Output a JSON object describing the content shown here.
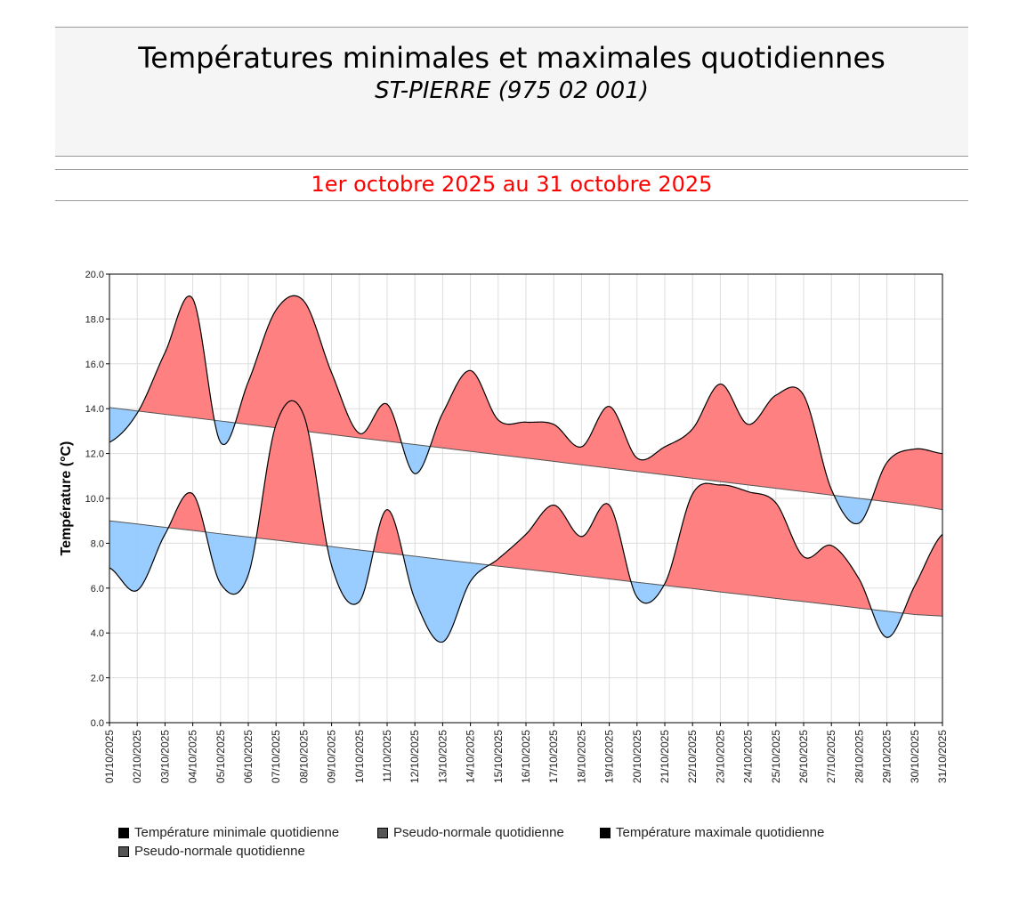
{
  "header": {
    "title": "Températures minimales et maximales quotidiennes",
    "station": "ST-PIERRE (975 02 001)",
    "period": "1er octobre 2025 au 31 octobre 2025"
  },
  "chart_data": {
    "type": "area",
    "ylabel": "Température (°C)",
    "ylim": [
      0,
      20
    ],
    "yticks": [
      "0.0",
      "2.0",
      "4.0",
      "6.0",
      "8.0",
      "10.0",
      "12.0",
      "14.0",
      "16.0",
      "18.0",
      "20.0"
    ],
    "grid": true,
    "categories": [
      "01/10/2025",
      "02/10/2025",
      "03/10/2025",
      "04/10/2025",
      "05/10/2025",
      "06/10/2025",
      "07/10/2025",
      "08/10/2025",
      "09/10/2025",
      "10/10/2025",
      "11/10/2025",
      "12/10/2025",
      "13/10/2025",
      "14/10/2025",
      "15/10/2025",
      "16/10/2025",
      "17/10/2025",
      "18/10/2025",
      "19/10/2025",
      "20/10/2025",
      "21/10/2025",
      "22/10/2025",
      "23/10/2025",
      "24/10/2025",
      "25/10/2025",
      "26/10/2025",
      "27/10/2025",
      "28/10/2025",
      "29/10/2025",
      "30/10/2025",
      "31/10/2025"
    ],
    "series": [
      {
        "name": "Température minimale quotidienne",
        "values": [
          6.9,
          5.9,
          8.4,
          10.2,
          6.2,
          6.6,
          13.3,
          13.7,
          7.0,
          5.4,
          9.5,
          5.5,
          3.6,
          6.3,
          7.3,
          8.4,
          9.7,
          8.3,
          9.7,
          5.6,
          6.2,
          10.2,
          10.6,
          10.3,
          9.8,
          7.4,
          7.9,
          6.4,
          3.8,
          6.1,
          8.4
        ]
      },
      {
        "name": "Pseudo-normale quotidienne",
        "values": [
          9.0,
          8.86,
          8.71,
          8.57,
          8.42,
          8.28,
          8.14,
          7.99,
          7.85,
          7.7,
          7.56,
          7.42,
          7.27,
          7.13,
          6.98,
          6.84,
          6.7,
          6.55,
          6.41,
          6.26,
          6.12,
          5.98,
          5.83,
          5.69,
          5.54,
          5.4,
          5.26,
          5.11,
          4.97,
          4.82,
          4.75
        ]
      },
      {
        "name": "Température maximale quotidienne",
        "values": [
          12.5,
          13.8,
          16.5,
          18.9,
          12.5,
          15.2,
          18.4,
          18.8,
          15.6,
          12.9,
          14.2,
          11.1,
          13.8,
          15.7,
          13.5,
          13.4,
          13.3,
          12.3,
          14.1,
          11.8,
          12.3,
          13.1,
          15.1,
          13.3,
          14.6,
          14.6,
          10.4,
          8.9,
          11.6,
          12.2,
          12.0
        ]
      },
      {
        "name": "Pseudo-normale quotidienne",
        "values": [
          14.05,
          13.9,
          13.75,
          13.6,
          13.45,
          13.3,
          13.15,
          13.0,
          12.85,
          12.7,
          12.55,
          12.4,
          12.25,
          12.1,
          11.95,
          11.8,
          11.65,
          11.5,
          11.35,
          11.2,
          11.05,
          10.9,
          10.75,
          10.6,
          10.45,
          10.3,
          10.15,
          10.0,
          9.85,
          9.7,
          9.5
        ]
      }
    ],
    "colors": {
      "above": "#ff8080",
      "below": "#99ccff",
      "line": "#000000",
      "normal": "#555555",
      "grid": "#dddddd"
    },
    "legend": [
      {
        "label": "Température minimale quotidienne",
        "color": "#000000"
      },
      {
        "label": "Pseudo-normale quotidienne",
        "color": "#555555"
      },
      {
        "label": "Température maximale quotidienne",
        "color": "#000000"
      },
      {
        "label": "Pseudo-normale quotidienne",
        "color": "#555555"
      }
    ]
  }
}
